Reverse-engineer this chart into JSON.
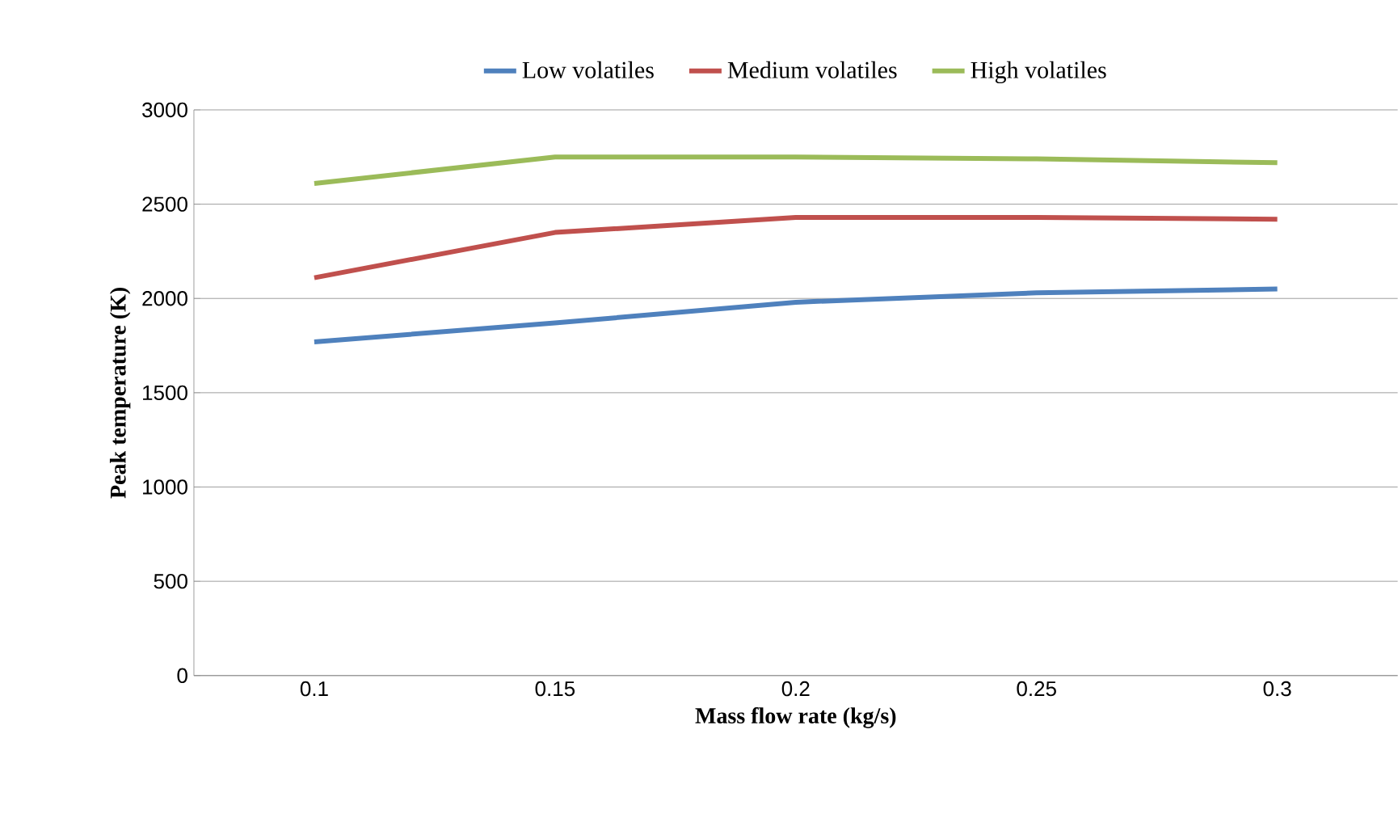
{
  "chart_data": {
    "type": "line",
    "xlabel": "Mass flow rate (kg/s)",
    "ylabel": "Peak temperature  (K)",
    "categories": [
      "0.1",
      "0.15",
      "0.2",
      "0.25",
      "0.3"
    ],
    "series": [
      {
        "name": "Low volatiles",
        "color": "#4f81bd",
        "values": [
          1770,
          1870,
          1980,
          2030,
          2050
        ]
      },
      {
        "name": "Medium volatiles",
        "color": "#c0504d",
        "values": [
          2110,
          2350,
          2430,
          2430,
          2420
        ]
      },
      {
        "name": "High volatiles",
        "color": "#9bbb59",
        "values": [
          2610,
          2750,
          2750,
          2740,
          2720
        ]
      }
    ],
    "ylim": [
      0,
      3000
    ],
    "yticks": [
      0,
      500,
      1000,
      1500,
      2000,
      2500,
      3000
    ],
    "grid": "y",
    "legend": "top",
    "marker": "none",
    "line_style": "solid"
  }
}
